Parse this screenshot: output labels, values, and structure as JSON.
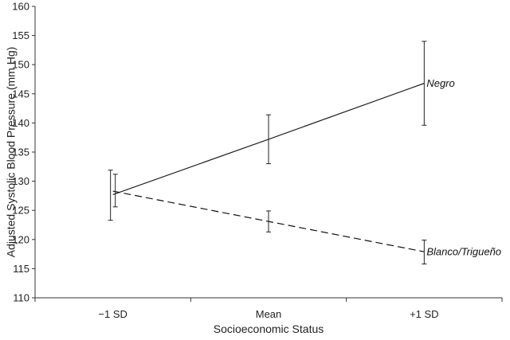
{
  "chart_data": {
    "type": "line",
    "title": "",
    "xlabel": "Socioeconomic Status",
    "ylabel": "Adjusted Systolic Blood Pressure (mm Hg)",
    "categories": [
      "−1 SD",
      "Mean",
      "+1 SD"
    ],
    "ylim": [
      110,
      160
    ],
    "yticks": [
      110,
      115,
      120,
      125,
      130,
      135,
      140,
      145,
      150,
      155,
      160
    ],
    "grid": false,
    "series": [
      {
        "name": "Negro",
        "values": [
          127.7,
          137.2,
          146.8
        ],
        "error_low": [
          123.3,
          133.0,
          139.6
        ],
        "error_high": [
          131.9,
          141.4,
          154.0
        ],
        "line_style": "solid",
        "color": "#222222"
      },
      {
        "name": "Blanco/Trigueño",
        "values": [
          128.3,
          123.1,
          117.9
        ],
        "error_low": [
          125.6,
          121.3,
          115.8
        ],
        "error_high": [
          131.2,
          124.9,
          119.9
        ],
        "line_style": "dashed",
        "color": "#111111"
      }
    ]
  }
}
